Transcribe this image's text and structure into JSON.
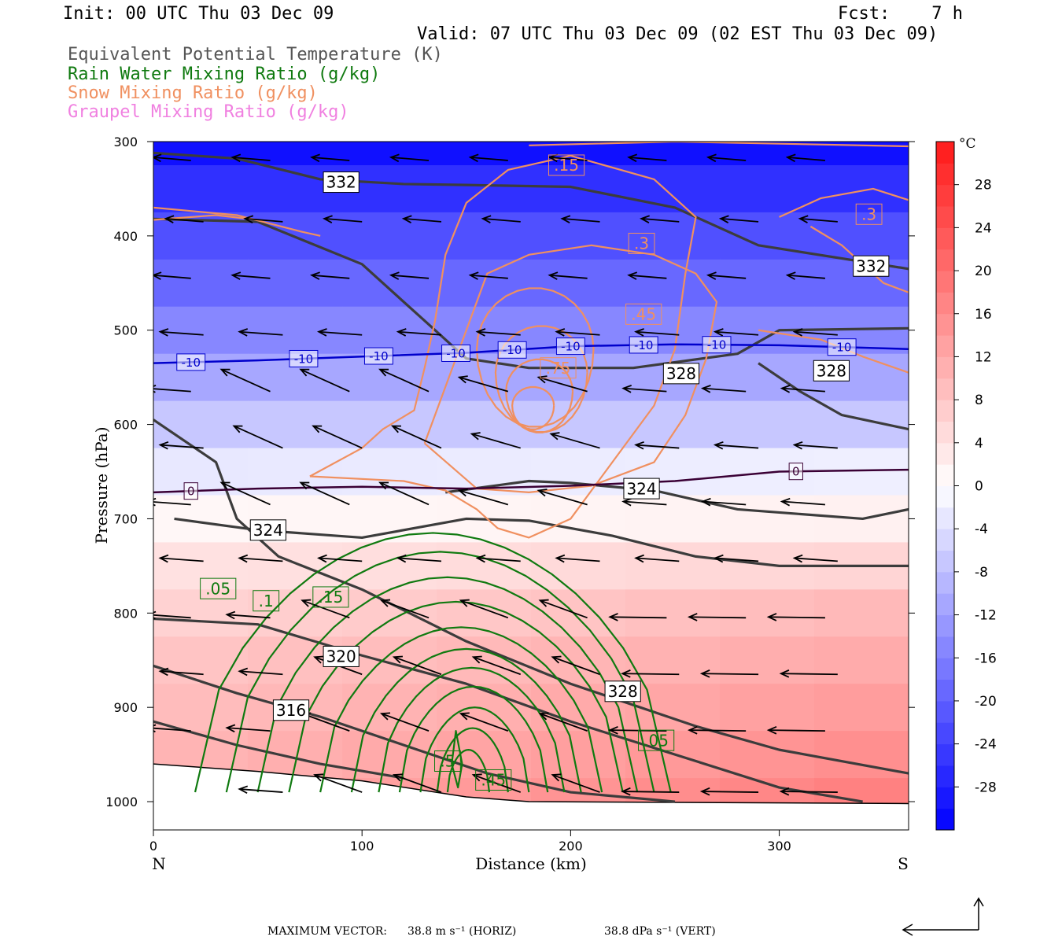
{
  "header": {
    "init": "Init: 00 UTC Thu 03 Dec 09",
    "fcst": "Fcst:    7 h",
    "valid": "Valid: 07 UTC Thu 03 Dec 09 (02 EST Thu 03 Dec 09)",
    "legend": [
      {
        "text": "Equivalent Potential Temperature (K)",
        "color": "#555555"
      },
      {
        "text": "Rain Water Mixing Ratio (g/kg)",
        "color": "#107a10"
      },
      {
        "text": "Snow Mixing Ratio (g/kg)",
        "color": "#f09060"
      },
      {
        "text": "Graupel Mixing Ratio (g/kg)",
        "color": "#f080e0"
      }
    ]
  },
  "footer": {
    "label": "MAXIMUM VECTOR:",
    "horiz": "38.8 m s⁻¹ (HORIZ)",
    "vert": "38.8 dPa s⁻¹ (VERT)"
  },
  "chart_data": {
    "type": "cross-section",
    "xlabel": "Distance (km)",
    "ylabel": "Pressure (hPa)",
    "x_ticks": [
      0,
      100,
      200,
      300
    ],
    "y_ticks": [
      300,
      400,
      500,
      600,
      700,
      800,
      900,
      1000
    ],
    "xlim": [
      0,
      362
    ],
    "ylim": [
      1030,
      300
    ],
    "x_end_labels": {
      "left": "N",
      "right": "S"
    },
    "colorbar": {
      "unit": "°C",
      "ticks": [
        28,
        24,
        20,
        16,
        12,
        8,
        4,
        0,
        -4,
        -8,
        -12,
        -16,
        -20,
        -24,
        -28
      ],
      "range": [
        -32,
        32
      ]
    },
    "shaded_temperature_C": {
      "levels_hPa": [
        300,
        350,
        400,
        450,
        500,
        550,
        600,
        650,
        700,
        750,
        800,
        850,
        900,
        950,
        1000
      ],
      "north_C": [
        -30,
        -26,
        -22,
        -19,
        -15,
        -11,
        -7,
        -3,
        1,
        4,
        6,
        8,
        9,
        10,
        11
      ],
      "south_C": [
        -30,
        -26,
        -22,
        -19,
        -15,
        -11,
        -7,
        -2,
        2,
        6,
        10,
        12,
        14,
        16,
        18
      ]
    },
    "isotherms": [
      {
        "value": -10,
        "color": "#0000cc",
        "label": "-10",
        "points": [
          [
            0,
            535
          ],
          [
            50,
            532
          ],
          [
            100,
            528
          ],
          [
            150,
            524
          ],
          [
            200,
            517
          ],
          [
            250,
            515
          ],
          [
            300,
            516
          ],
          [
            362,
            520
          ]
        ],
        "label_x": [
          18,
          72,
          108,
          145,
          172,
          200,
          235,
          270,
          330
        ]
      },
      {
        "value": 0,
        "color": "#3a0035",
        "label": "0",
        "points": [
          [
            0,
            672
          ],
          [
            50,
            668
          ],
          [
            100,
            666
          ],
          [
            150,
            668
          ],
          [
            200,
            665
          ],
          [
            250,
            660
          ],
          [
            300,
            650
          ],
          [
            362,
            648
          ]
        ],
        "label_x": [
          18,
          308
        ]
      }
    ],
    "theta_e": [
      {
        "label": "332",
        "points": [
          [
            0,
            312
          ],
          [
            40,
            318
          ],
          [
            80,
            340
          ],
          [
            120,
            345
          ],
          [
            150,
            346
          ],
          [
            200,
            348
          ],
          [
            250,
            370
          ],
          [
            290,
            410
          ],
          [
            362,
            435
          ]
        ],
        "labels_at": [
          [
            90,
            343
          ],
          [
            344,
            432
          ]
        ]
      },
      {
        "label": "328",
        "points": [
          [
            0,
            595
          ],
          [
            30,
            640
          ],
          [
            40,
            700
          ],
          [
            60,
            740
          ],
          [
            100,
            775
          ],
          [
            150,
            830
          ],
          [
            200,
            875
          ],
          [
            260,
            920
          ],
          [
            300,
            945
          ],
          [
            362,
            970
          ]
        ],
        "labels_at": [
          [
            225,
            883
          ]
        ]
      },
      {
        "label": "328",
        "points": [
          [
            0,
            382
          ],
          [
            50,
            385
          ],
          [
            100,
            430
          ],
          [
            130,
            490
          ],
          [
            150,
            530
          ],
          [
            180,
            540
          ],
          [
            230,
            540
          ],
          [
            280,
            525
          ],
          [
            300,
            500
          ],
          [
            362,
            498
          ]
        ],
        "labels_at": [
          [
            253,
            546
          ]
        ]
      },
      {
        "label": "328",
        "points": [
          [
            290,
            535
          ],
          [
            310,
            565
          ],
          [
            330,
            590
          ],
          [
            362,
            605
          ]
        ],
        "labels_at": [
          [
            325,
            543
          ]
        ]
      },
      {
        "label": "324",
        "points": [
          [
            10,
            700
          ],
          [
            50,
            712
          ],
          [
            100,
            720
          ],
          [
            150,
            700
          ],
          [
            180,
            702
          ],
          [
            220,
            718
          ],
          [
            260,
            740
          ],
          [
            300,
            750
          ],
          [
            362,
            750
          ]
        ],
        "labels_at": [
          [
            55,
            712
          ]
        ]
      },
      {
        "label": "324",
        "points": [
          [
            140,
            672
          ],
          [
            180,
            660
          ],
          [
            200,
            662
          ],
          [
            240,
            670
          ],
          [
            280,
            690
          ],
          [
            340,
            700
          ],
          [
            362,
            690
          ]
        ],
        "labels_at": [
          [
            234,
            668
          ]
        ]
      },
      {
        "label": "320",
        "points": [
          [
            0,
            806
          ],
          [
            50,
            812
          ],
          [
            100,
            845
          ],
          [
            150,
            875
          ],
          [
            200,
            915
          ],
          [
            250,
            950
          ],
          [
            300,
            985
          ],
          [
            340,
            1000
          ]
        ],
        "labels_at": [
          [
            90,
            846
          ]
        ]
      },
      {
        "label": "316",
        "points": [
          [
            0,
            856
          ],
          [
            40,
            885
          ],
          [
            80,
            910
          ],
          [
            120,
            940
          ],
          [
            160,
            970
          ],
          [
            200,
            990
          ],
          [
            250,
            1000
          ]
        ],
        "labels_at": [
          [
            66,
            903
          ]
        ]
      },
      {
        "label": "",
        "points": [
          [
            0,
            915
          ],
          [
            40,
            940
          ],
          [
            80,
            960
          ],
          [
            120,
            975
          ]
        ],
        "labels_at": []
      }
    ],
    "rain_water": {
      "max": 0.5,
      "labeled": [
        ".05",
        ".1",
        ".15",
        ".5",
        ".45",
        ".05"
      ]
    },
    "snow": {
      "labels": [
        ".15",
        ".3",
        ".45",
        ".75",
        ".3"
      ]
    },
    "graupel": {
      "labels": []
    },
    "terrain_surface_hPa": [
      [
        0,
        960
      ],
      [
        50,
        968
      ],
      [
        100,
        978
      ],
      [
        150,
        995
      ],
      [
        180,
        1000
      ],
      [
        362,
        1002
      ]
    ]
  }
}
